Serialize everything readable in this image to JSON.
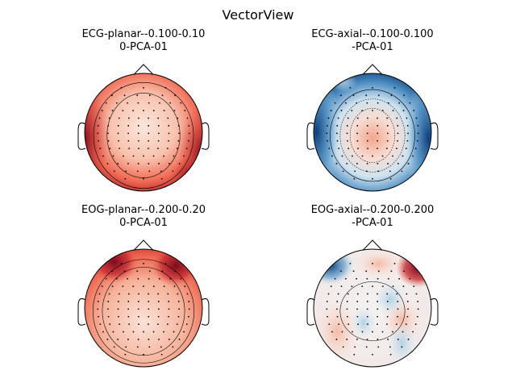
{
  "figure": {
    "title": "VectorView"
  },
  "chart_data": [
    {
      "type": "heatmap",
      "kind": "topomap",
      "title": [
        "ECG-planar--0.100-0.10",
        "0-PCA-01"
      ],
      "colormap": "RdBu_r",
      "pattern": "ecg_planar",
      "description": "mostly positive (red) field, strongest on left and right edges"
    },
    {
      "type": "heatmap",
      "kind": "topomap",
      "title": [
        "ECG-axial--0.100-0.100",
        "-PCA-01"
      ],
      "colormap": "RdBu_r",
      "pattern": "ecg_axial",
      "description": "negative (blue) ring at periphery, weakly positive center"
    },
    {
      "type": "heatmap",
      "kind": "topomap",
      "title": [
        "EOG-planar--0.200-0.20",
        "0-PCA-01"
      ],
      "colormap": "RdBu_r",
      "pattern": "eog_planar",
      "description": "positive field, strongest at front-left and front-right"
    },
    {
      "type": "heatmap",
      "kind": "topomap",
      "title": [
        "EOG-axial--0.200-0.200",
        "-PCA-01"
      ],
      "colormap": "RdBu_r",
      "pattern": "eog_axial",
      "description": "blue at front-left, red at front-right, mixed weak values elsewhere"
    }
  ]
}
